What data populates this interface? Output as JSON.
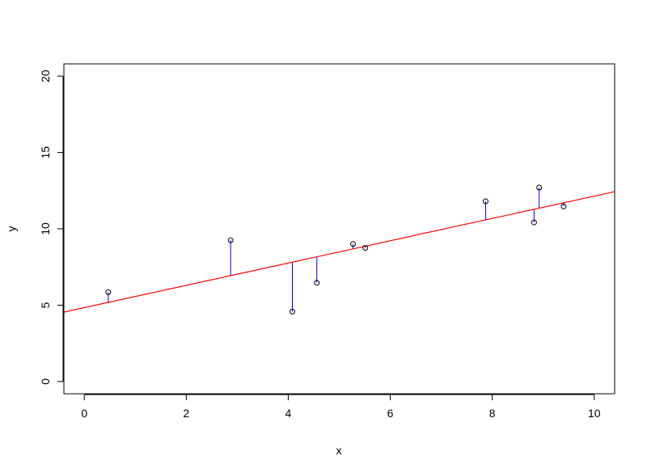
{
  "chart_data": {
    "type": "scatter",
    "title": "",
    "xlabel": "x",
    "ylabel": "y",
    "xlim": [
      -0.4,
      10.4
    ],
    "ylim": [
      -0.8,
      20.8
    ],
    "x_ticks": [
      0,
      2,
      4,
      6,
      8,
      10
    ],
    "y_ticks": [
      0,
      5,
      10,
      15,
      20
    ],
    "grid": false,
    "points": [
      {
        "x": 0.47,
        "y": 5.85
      },
      {
        "x": 2.87,
        "y": 9.25
      },
      {
        "x": 4.08,
        "y": 4.58
      },
      {
        "x": 4.56,
        "y": 6.47
      },
      {
        "x": 5.27,
        "y": 9.0
      },
      {
        "x": 5.51,
        "y": 8.75
      },
      {
        "x": 7.87,
        "y": 11.8
      },
      {
        "x": 8.82,
        "y": 10.42
      },
      {
        "x": 8.92,
        "y": 12.7
      },
      {
        "x": 9.4,
        "y": 11.47
      }
    ],
    "fit_line": {
      "intercept": 4.84,
      "slope": 0.73
    },
    "colors": {
      "points": "#000000",
      "fit_line": "#ff0000",
      "residuals": "#0000ff"
    }
  }
}
